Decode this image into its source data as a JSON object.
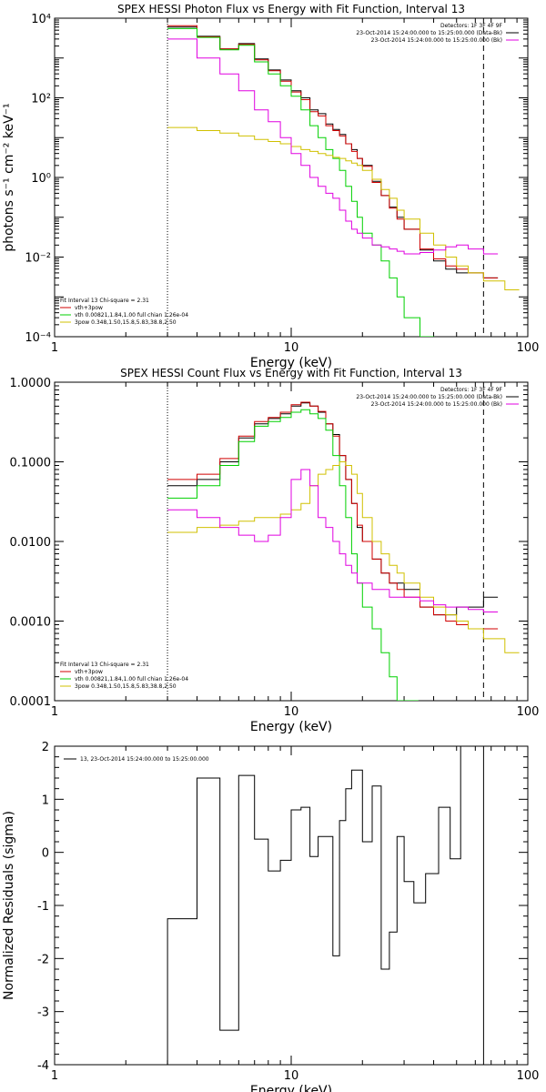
{
  "chart_data": [
    {
      "type": "line",
      "title": "SPEX HESSI Photon Flux vs Energy with Fit Function, Interval 13",
      "xlabel": "Energy (keV)",
      "ylabel": "photons s⁻¹ cm⁻² keV⁻¹",
      "xscale": "log",
      "yscale": "log",
      "xlim": [
        1,
        100
      ],
      "ylim": [
        0.0001,
        10000
      ],
      "xticklabels": [
        "1",
        "10",
        "100"
      ],
      "yticklabels": [
        "10⁻⁴",
        "10⁻²",
        "10⁰",
        "10²",
        "10⁴"
      ],
      "info_lines": [
        "Detectors: 1F 3F 4F 9F",
        "23-Oct-2014 15:24:00.000 to 15:25:00.000 (Data-Bk)",
        "23-Oct-2014 15:24:00.000 to 15:25:00.000 (Bk)"
      ],
      "legend_title": "Fit Interval 13   Chi-square = 2.31",
      "legend": [
        {
          "label": "vth+3pow",
          "color": "#d00000"
        },
        {
          "label": "vth 0.00821,1.84,1.00  full chian 1.26e-04",
          "color": "#00d000"
        },
        {
          "label": "3pow 0.348,1.50,15.8,5.83,38.8,2.50",
          "color": "#d0c000"
        }
      ],
      "vlines": [
        {
          "x": 3,
          "style": "dotted"
        },
        {
          "x": 65,
          "style": "dashed"
        }
      ],
      "series": [
        {
          "name": "Data-Bk",
          "color": "#000000",
          "x": [
            3,
            4,
            5,
            6,
            7,
            8,
            9,
            10,
            11,
            12,
            13,
            14,
            15,
            16,
            17,
            18,
            19,
            20,
            22,
            24,
            26,
            28,
            30,
            35,
            40,
            45,
            50,
            56,
            65
          ],
          "y": [
            6000,
            3500,
            1700,
            2300,
            950,
            500,
            280,
            150,
            100,
            50,
            40,
            22,
            16,
            12,
            7,
            5,
            3,
            2,
            0.8,
            0.35,
            0.18,
            0.1,
            0.05,
            0.015,
            0.008,
            0.005,
            0.004,
            0.004,
            0.003
          ]
        },
        {
          "name": "vth+3pow",
          "color": "#d00000",
          "x": [
            3,
            4,
            5,
            6,
            7,
            8,
            9,
            10,
            11,
            12,
            13,
            14,
            15,
            16,
            17,
            18,
            19,
            20,
            22,
            24,
            26,
            28,
            30,
            35,
            40,
            45,
            50,
            56,
            65
          ],
          "y": [
            6500,
            3400,
            1700,
            2200,
            900,
            480,
            260,
            140,
            90,
            45,
            35,
            20,
            15,
            11,
            7,
            4.5,
            3,
            1.9,
            0.75,
            0.35,
            0.17,
            0.09,
            0.05,
            0.016,
            0.009,
            0.006,
            0.005,
            0.004,
            0.003
          ]
        },
        {
          "name": "vth",
          "color": "#00d000",
          "x": [
            3,
            4,
            5,
            6,
            7,
            8,
            9,
            10,
            11,
            12,
            13,
            14,
            15,
            16,
            17,
            18,
            19,
            20,
            22,
            24,
            26,
            28,
            30,
            35
          ],
          "y": [
            5500,
            3300,
            1600,
            2100,
            800,
            400,
            200,
            110,
            50,
            20,
            10,
            5,
            3,
            1.5,
            0.6,
            0.25,
            0.1,
            0.04,
            0.02,
            0.008,
            0.003,
            0.001,
            0.0003,
            0.0001
          ]
        },
        {
          "name": "3pow",
          "color": "#d0c000",
          "x": [
            3,
            4,
            5,
            6,
            7,
            8,
            9,
            10,
            11,
            12,
            13,
            14,
            15,
            16,
            17,
            18,
            19,
            20,
            22,
            24,
            26,
            28,
            30,
            35,
            40,
            45,
            50,
            56,
            65,
            80
          ],
          "y": [
            18,
            15,
            13,
            11,
            9,
            8,
            7,
            6,
            5,
            4.5,
            4,
            3.6,
            3.2,
            3,
            2.6,
            2.3,
            2,
            1.5,
            0.9,
            0.5,
            0.3,
            0.15,
            0.09,
            0.04,
            0.02,
            0.01,
            0.006,
            0.004,
            0.0025,
            0.0015
          ]
        },
        {
          "name": "Bk",
          "color": "#e000e0",
          "x": [
            3,
            4,
            5,
            6,
            7,
            8,
            9,
            10,
            11,
            12,
            13,
            14,
            15,
            16,
            17,
            18,
            19,
            20,
            22,
            24,
            26,
            28,
            30,
            35,
            40,
            45,
            50,
            56,
            65
          ],
          "y": [
            3000,
            1000,
            400,
            150,
            50,
            25,
            10,
            4,
            2,
            1,
            0.6,
            0.4,
            0.3,
            0.15,
            0.08,
            0.05,
            0.04,
            0.03,
            0.02,
            0.018,
            0.016,
            0.014,
            0.012,
            0.013,
            0.015,
            0.018,
            0.02,
            0.016,
            0.012
          ]
        }
      ]
    },
    {
      "type": "line",
      "title": "SPEX HESSI Count Flux vs Energy with Fit Function, Interval 13",
      "xlabel": "Energy (keV)",
      "ylabel": "",
      "xscale": "log",
      "yscale": "log",
      "xlim": [
        1,
        100
      ],
      "ylim": [
        0.0001,
        1
      ],
      "xticklabels": [
        "1",
        "10",
        "100"
      ],
      "yticklabels": [
        "0.0001",
        "0.0010",
        "0.0100",
        "0.1000",
        "1.0000"
      ],
      "info_lines": [
        "Detectors: 1F 3F 4F 9F",
        "23-Oct-2014 15:24:00.000 to 15:25:00.000 (Data-Bk)",
        "23-Oct-2014 15:24:00.000 to 15:25:00.000 (Bk)"
      ],
      "legend_title": "Fit Interval 13   Chi-square = 2.31",
      "legend": [
        {
          "label": "vth+3pow",
          "color": "#d00000"
        },
        {
          "label": "vth 0.00821,1.84,1.00  full chian 1.26e-04",
          "color": "#00d000"
        },
        {
          "label": "3pow 0.348,1.50,15.8,5.83,38.8,2.50",
          "color": "#d0c000"
        }
      ],
      "vlines": [
        {
          "x": 3,
          "style": "dotted"
        },
        {
          "x": 65,
          "style": "dashed"
        }
      ],
      "series": [
        {
          "name": "Data-Bk",
          "color": "#000000",
          "x": [
            3,
            4,
            5,
            6,
            7,
            8,
            9,
            10,
            11,
            12,
            13,
            14,
            15,
            16,
            17,
            18,
            19,
            20,
            22,
            24,
            26,
            28,
            30,
            35,
            40,
            45,
            50,
            56,
            65
          ],
          "y": [
            0.05,
            0.06,
            0.1,
            0.2,
            0.3,
            0.35,
            0.4,
            0.5,
            0.55,
            0.5,
            0.42,
            0.3,
            0.22,
            0.12,
            0.06,
            0.03,
            0.015,
            0.01,
            0.006,
            0.004,
            0.003,
            0.003,
            0.0025,
            0.0015,
            0.0012,
            0.0012,
            0.0015,
            0.0015,
            0.002
          ]
        },
        {
          "name": "vth+3pow",
          "color": "#d00000",
          "x": [
            3,
            4,
            5,
            6,
            7,
            8,
            9,
            10,
            11,
            12,
            13,
            14,
            15,
            16,
            17,
            18,
            19,
            20,
            22,
            24,
            26,
            28,
            30,
            35,
            40,
            45,
            50,
            56,
            65
          ],
          "y": [
            0.06,
            0.07,
            0.11,
            0.21,
            0.32,
            0.36,
            0.42,
            0.52,
            0.56,
            0.5,
            0.43,
            0.3,
            0.21,
            0.12,
            0.06,
            0.03,
            0.016,
            0.01,
            0.006,
            0.004,
            0.003,
            0.0025,
            0.002,
            0.0015,
            0.0012,
            0.001,
            0.0009,
            0.0008,
            0.0008
          ]
        },
        {
          "name": "vth",
          "color": "#00d000",
          "x": [
            3,
            4,
            5,
            6,
            7,
            8,
            9,
            10,
            11,
            12,
            13,
            14,
            15,
            16,
            17,
            18,
            19,
            20,
            22,
            24,
            26,
            28,
            30
          ],
          "y": [
            0.035,
            0.05,
            0.09,
            0.18,
            0.28,
            0.32,
            0.36,
            0.42,
            0.45,
            0.4,
            0.35,
            0.25,
            0.12,
            0.05,
            0.02,
            0.007,
            0.003,
            0.0015,
            0.0008,
            0.0004,
            0.0002,
            0.0001,
            0.0001
          ]
        },
        {
          "name": "3pow",
          "color": "#d0c000",
          "x": [
            3,
            4,
            5,
            6,
            7,
            8,
            9,
            10,
            11,
            12,
            13,
            14,
            15,
            16,
            17,
            18,
            19,
            20,
            22,
            24,
            26,
            28,
            30,
            35,
            40,
            45,
            50,
            56,
            65,
            80
          ],
          "y": [
            0.013,
            0.015,
            0.016,
            0.018,
            0.02,
            0.02,
            0.022,
            0.025,
            0.03,
            0.05,
            0.07,
            0.08,
            0.09,
            0.1,
            0.09,
            0.07,
            0.04,
            0.02,
            0.01,
            0.007,
            0.005,
            0.004,
            0.003,
            0.002,
            0.0015,
            0.0012,
            0.001,
            0.0008,
            0.0006,
            0.0004
          ]
        },
        {
          "name": "Bk",
          "color": "#e000e0",
          "x": [
            3,
            4,
            5,
            6,
            7,
            8,
            9,
            10,
            11,
            12,
            13,
            14,
            15,
            16,
            17,
            18,
            19,
            20,
            22,
            24,
            26,
            28,
            30,
            35,
            40,
            45,
            50,
            56,
            65
          ],
          "y": [
            0.025,
            0.02,
            0.015,
            0.012,
            0.01,
            0.012,
            0.02,
            0.06,
            0.08,
            0.05,
            0.02,
            0.015,
            0.01,
            0.007,
            0.005,
            0.004,
            0.003,
            0.003,
            0.0025,
            0.0025,
            0.002,
            0.002,
            0.002,
            0.0018,
            0.0016,
            0.0015,
            0.0015,
            0.0014,
            0.0013
          ]
        }
      ]
    },
    {
      "type": "line",
      "title": "",
      "xlabel": "Energy (keV)",
      "ylabel": "Normalized Residuals (sigma)",
      "xscale": "log",
      "yscale": "linear",
      "xlim": [
        1,
        100
      ],
      "ylim": [
        -4,
        2
      ],
      "xticklabels": [
        "1",
        "10",
        "100"
      ],
      "yticklabels": [
        "-4",
        "-3",
        "-2",
        "-1",
        "0",
        "1",
        "2"
      ],
      "legend": [
        {
          "label": "13, 23-Oct-2014 15:24:00.000 to 15:25:00.000",
          "color": "#000000"
        }
      ],
      "series": [
        {
          "name": "",
          "color": "#000000",
          "edges": [
            3,
            3.5,
            4,
            5,
            6,
            7,
            8,
            9,
            10,
            11,
            12,
            13,
            14,
            15,
            16,
            17,
            18,
            20,
            22,
            24,
            26,
            28,
            30,
            33,
            37,
            42,
            47,
            52,
            58,
            65
          ],
          "values": [
            -1.25,
            -1.25,
            1.4,
            -3.35,
            1.45,
            0.25,
            -0.35,
            -0.15,
            0.8,
            0.85,
            -0.08,
            0.3,
            0.3,
            -1.95,
            0.6,
            1.2,
            1.55,
            0.2,
            1.25,
            -2.2,
            -1.5,
            0.3,
            -0.55,
            -0.95,
            -0.4,
            0.85,
            -0.12,
            2.0,
            2.0
          ]
        }
      ]
    }
  ]
}
